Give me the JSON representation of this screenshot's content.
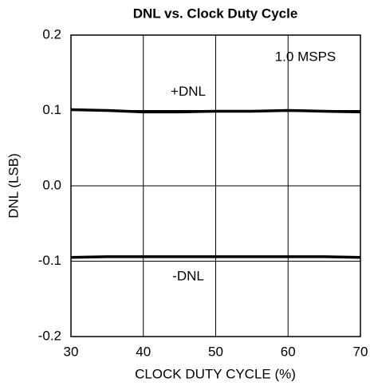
{
  "chart_data": {
    "type": "line",
    "title": "DNL vs. Clock Duty Cycle",
    "x_label": "CLOCK DUTY CYCLE (%)",
    "y_label": "DNL (LSB)",
    "annotation": "1.0 MSPS",
    "x": [
      30,
      35,
      40,
      45,
      50,
      55,
      60,
      65,
      70
    ],
    "series": [
      {
        "name": "+DNL",
        "color": "#000000",
        "values": [
          0.101,
          0.1,
          0.098,
          0.098,
          0.099,
          0.099,
          0.1,
          0.099,
          0.098
        ]
      },
      {
        "name": "-DNL",
        "color": "#000000",
        "values": [
          -0.095,
          -0.094,
          -0.094,
          -0.094,
          -0.094,
          -0.094,
          -0.094,
          -0.094,
          -0.095
        ]
      }
    ],
    "xlim": [
      30,
      70
    ],
    "xticks": [
      30,
      40,
      50,
      60,
      70
    ],
    "ylim": [
      -0.2,
      0.2
    ],
    "yticks": [
      -0.2,
      -0.1,
      {
        "value": 0,
        "label": "0.0"
      },
      0.1,
      0.2
    ],
    "grid": true
  }
}
